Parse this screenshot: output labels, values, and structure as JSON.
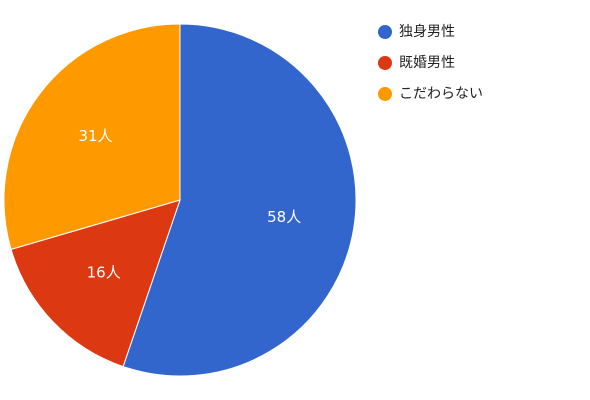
{
  "chart_data": {
    "type": "pie",
    "categories": [
      "独身男性",
      "既婚男性",
      "こだわらない"
    ],
    "values": [
      58,
      16,
      31
    ],
    "value_labels": [
      "58人",
      "16人",
      "31人"
    ],
    "colors": [
      "#3366cc",
      "#dc3912",
      "#ff9900"
    ],
    "legend": "right"
  }
}
